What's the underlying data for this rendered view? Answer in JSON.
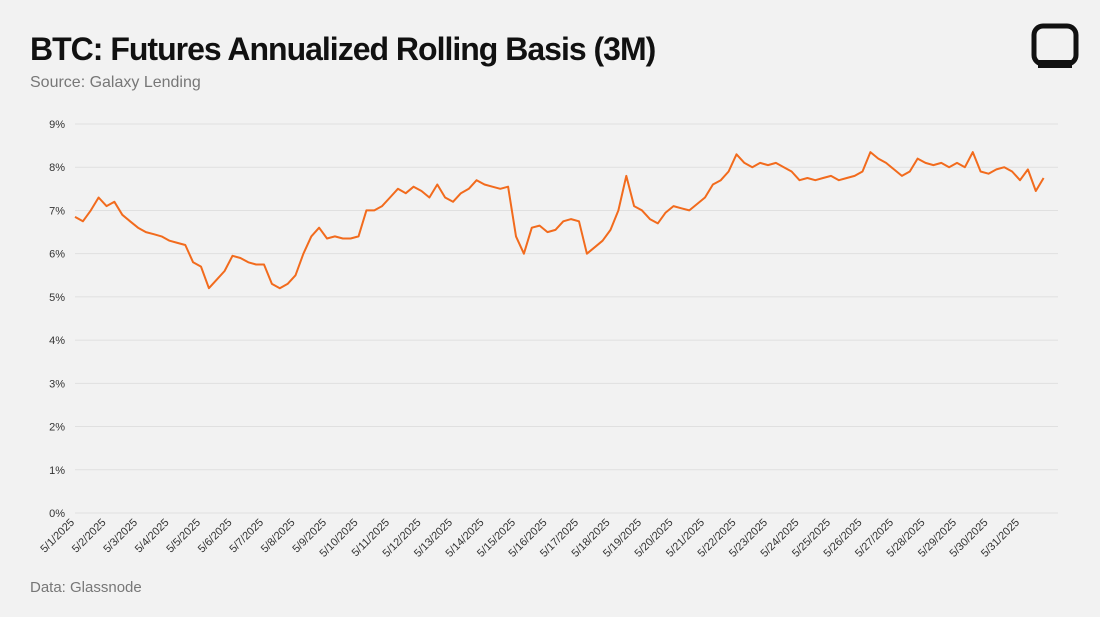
{
  "chart_data": {
    "type": "line",
    "title": "BTC: Futures Annualized Rolling Basis (3M)",
    "subtitle": "Source: Galaxy Lending",
    "footer": "Data: Glassnode",
    "categories": [
      "5/1/2025",
      null,
      null,
      null,
      "5/2/2025",
      null,
      null,
      null,
      "5/3/2025",
      null,
      null,
      null,
      "5/4/2025",
      null,
      null,
      null,
      "5/5/2025",
      null,
      null,
      null,
      "5/6/2025",
      null,
      null,
      null,
      "5/7/2025",
      null,
      null,
      null,
      "5/8/2025",
      null,
      null,
      null,
      "5/9/2025",
      null,
      null,
      null,
      "5/10/2025",
      null,
      null,
      null,
      "5/11/2025",
      null,
      null,
      null,
      "5/12/2025",
      null,
      null,
      null,
      "5/13/2025",
      null,
      null,
      null,
      "5/14/2025",
      null,
      null,
      null,
      "5/15/2025",
      null,
      null,
      null,
      "5/16/2025",
      null,
      null,
      null,
      "5/17/2025",
      null,
      null,
      null,
      "5/18/2025",
      null,
      null,
      null,
      "5/19/2025",
      null,
      null,
      null,
      "5/20/2025",
      null,
      null,
      null,
      "5/21/2025",
      null,
      null,
      null,
      "5/22/2025",
      null,
      null,
      null,
      "5/23/2025",
      null,
      null,
      null,
      "5/24/2025",
      null,
      null,
      null,
      "5/25/2025",
      null,
      null,
      null,
      "5/26/2025",
      null,
      null,
      null,
      "5/27/2025",
      null,
      null,
      null,
      "5/28/2025",
      null,
      null,
      null,
      "5/29/2025",
      null,
      null,
      null,
      "5/30/2025",
      null,
      null,
      null,
      "5/31/2025",
      null,
      null,
      null
    ],
    "series": [
      {
        "color": "#f26b1d",
        "values": [
          6.85,
          6.75,
          7.0,
          7.3,
          7.1,
          7.2,
          6.9,
          6.75,
          6.6,
          6.5,
          6.45,
          6.4,
          6.3,
          6.25,
          6.2,
          5.8,
          5.7,
          5.2,
          5.4,
          5.6,
          5.95,
          5.9,
          5.8,
          5.75,
          5.75,
          5.3,
          5.2,
          5.3,
          5.5,
          6.0,
          6.4,
          6.6,
          6.35,
          6.4,
          6.35,
          6.35,
          6.4,
          7.0,
          7.0,
          7.1,
          7.3,
          7.5,
          7.4,
          7.55,
          7.45,
          7.3,
          7.6,
          7.3,
          7.2,
          7.4,
          7.5,
          7.7,
          7.6,
          7.55,
          7.5,
          7.55,
          6.4,
          6.0,
          6.6,
          6.65,
          6.5,
          6.55,
          6.75,
          6.8,
          6.75,
          6.0,
          6.15,
          6.3,
          6.55,
          7.0,
          7.8,
          7.1,
          7.0,
          6.8,
          6.7,
          6.95,
          7.1,
          7.05,
          7.0,
          7.15,
          7.3,
          7.6,
          7.7,
          7.9,
          8.3,
          8.1,
          8.0,
          8.1,
          8.05,
          8.1,
          8.0,
          7.9,
          7.7,
          7.75,
          7.7,
          7.75,
          7.8,
          7.7,
          7.75,
          7.8,
          7.9,
          8.35,
          8.2,
          8.1,
          7.95,
          7.8,
          7.9,
          8.2,
          8.1,
          8.05,
          8.1,
          8.0,
          8.1,
          8.0,
          8.35,
          7.9,
          7.85,
          7.95,
          8.0,
          7.9,
          7.7,
          7.95,
          7.45,
          7.75
        ]
      }
    ],
    "ylim": [
      0,
      9
    ],
    "yticks": [
      {
        "value": 0,
        "label": "0%"
      },
      {
        "value": 1,
        "label": "1%"
      },
      {
        "value": 2,
        "label": "2%"
      },
      {
        "value": 3,
        "label": "3%"
      },
      {
        "value": 4,
        "label": "4%"
      },
      {
        "value": 5,
        "label": "5%"
      },
      {
        "value": 6,
        "label": "6%"
      },
      {
        "value": 7,
        "label": "7%"
      },
      {
        "value": 8,
        "label": "8%"
      },
      {
        "value": 9,
        "label": "9%"
      }
    ],
    "grid": true
  }
}
